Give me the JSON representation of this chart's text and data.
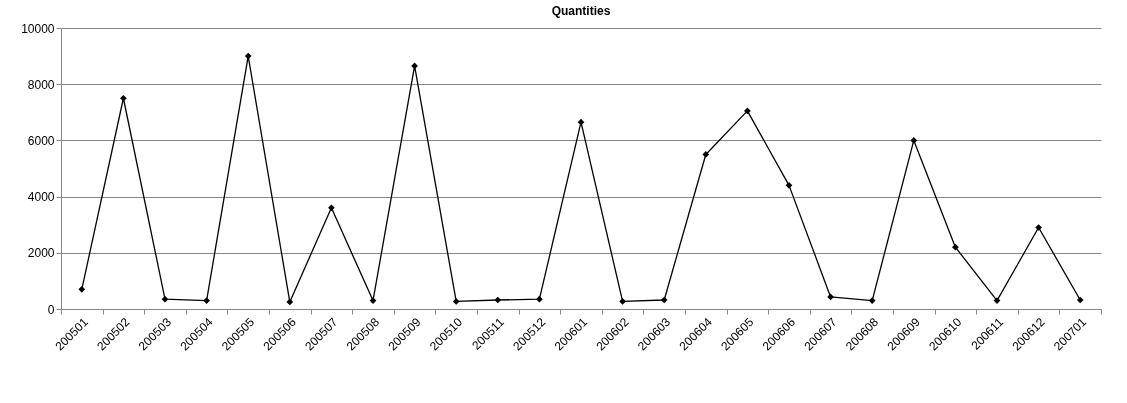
{
  "chart_data": {
    "type": "line",
    "title": "Quantities",
    "categories": [
      "200501",
      "200502",
      "200503",
      "200504",
      "200505",
      "200506",
      "200507",
      "200508",
      "200509",
      "200510",
      "200511",
      "200512",
      "200601",
      "200602",
      "200603",
      "200604",
      "200605",
      "200606",
      "200607",
      "200608",
      "200609",
      "200610",
      "200611",
      "200612",
      "200701"
    ],
    "series": [
      {
        "color": "#000000",
        "values": [
          700,
          7500,
          350,
          300,
          9000,
          250,
          3600,
          300,
          8650,
          270,
          320,
          350,
          6650,
          270,
          320,
          5500,
          7050,
          4400,
          430,
          300,
          6000,
          2200,
          300,
          2900,
          320
        ]
      }
    ],
    "ylim": [
      0,
      10000
    ],
    "yticks": [
      0,
      2000,
      4000,
      6000,
      8000,
      10000
    ],
    "grid": "y",
    "marker": "diamond",
    "line_style": "solid"
  }
}
